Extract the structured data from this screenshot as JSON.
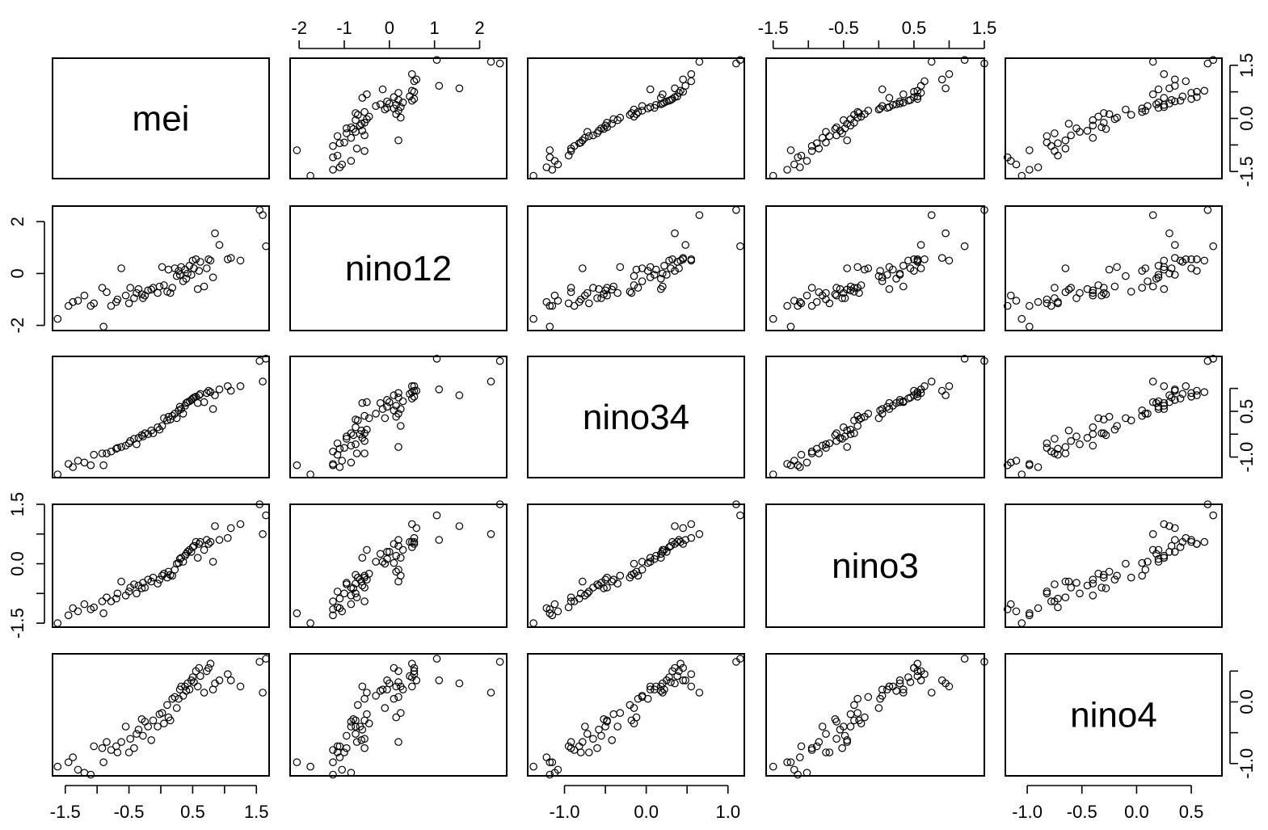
{
  "chart_data": {
    "type": "scatter",
    "title": "",
    "variables": [
      {
        "name": "mei",
        "range": [
          -1.7,
          1.7
        ]
      },
      {
        "name": "nino12",
        "range": [
          -2.2,
          2.6
        ]
      },
      {
        "name": "nino34",
        "range": [
          -1.45,
          1.2
        ]
      },
      {
        "name": "nino3",
        "range": [
          -1.6,
          1.5
        ]
      },
      {
        "name": "nino4",
        "range": [
          -1.2,
          0.78
        ]
      }
    ],
    "axes": {
      "top": [
        {
          "column": 1,
          "ticks": [
            -2,
            -1,
            0,
            1,
            2
          ],
          "labels": [
            "-2",
            "-1",
            "0",
            "1",
            "2"
          ]
        },
        {
          "column": 3,
          "ticks": [
            -1.5,
            -1,
            -0.5,
            0,
            0.5,
            1,
            1.5
          ],
          "labels": [
            "-1.5",
            "",
            "-0.5",
            "",
            "0.5",
            "",
            "1.5"
          ]
        }
      ],
      "bottom": [
        {
          "column": 0,
          "ticks": [
            -1.5,
            -1,
            -0.5,
            0,
            0.5,
            1,
            1.5
          ],
          "labels": [
            "-1.5",
            "",
            "-0.5",
            "",
            "0.5",
            "",
            "1.5"
          ]
        },
        {
          "column": 2,
          "ticks": [
            -1,
            -0.5,
            0,
            0.5,
            1
          ],
          "labels": [
            "-1.0",
            "",
            "0.0",
            "",
            "1.0"
          ]
        },
        {
          "column": 4,
          "ticks": [
            -1,
            -0.5,
            0,
            0.5
          ],
          "labels": [
            "-1.0",
            "-0.5",
            "0.0",
            "0.5"
          ]
        }
      ],
      "left": [
        {
          "row": 1,
          "ticks": [
            -2,
            0,
            2
          ],
          "labels": [
            "-2",
            "0",
            "2"
          ]
        },
        {
          "row": 3,
          "ticks": [
            -1.5,
            -0.75,
            0,
            0.75,
            1.5
          ],
          "labels": [
            "-1.5",
            "",
            "0.0",
            "",
            "1.5"
          ]
        }
      ],
      "right": [
        {
          "row": 0,
          "ticks": [
            -1.5,
            -0.75,
            0,
            0.75,
            1.5
          ],
          "labels": [
            "-1.5",
            "",
            "0.0",
            "",
            "1.5"
          ]
        },
        {
          "row": 2,
          "ticks": [
            -1,
            -0.5,
            0,
            0.5
          ],
          "labels": [
            "-1.0",
            "",
            "0.5",
            ""
          ],
          "label_positions": [
            -1,
            0.5
          ]
        },
        {
          "row": 4,
          "ticks": [
            -1,
            -0.5,
            0,
            0.5
          ],
          "labels": [
            "-1.0",
            "",
            "0.0",
            ""
          ]
        }
      ]
    },
    "observations": {
      "columns": [
        "mei",
        "nino12",
        "nino34",
        "nino3",
        "nino4"
      ],
      "rows": [
        [
          -1.62,
          -1.75,
          -1.38,
          -1.5,
          -1.05
        ],
        [
          -1.45,
          -1.25,
          -1.15,
          -1.3,
          -0.98
        ],
        [
          -1.38,
          -1.1,
          -1.22,
          -1.12,
          -0.9
        ],
        [
          -1.3,
          -1.05,
          -1.08,
          -1.2,
          -1.1
        ],
        [
          -1.2,
          -0.85,
          -1.12,
          -1.02,
          -1.15
        ],
        [
          -1.1,
          -1.25,
          -1.18,
          -1.15,
          -1.18
        ],
        [
          -1.05,
          -1.15,
          -0.95,
          -1.1,
          -0.72
        ],
        [
          -0.92,
          -0.55,
          -0.92,
          -0.95,
          -0.75
        ],
        [
          -0.9,
          -2.05,
          -1.18,
          -1.25,
          -0.98
        ],
        [
          -0.85,
          -0.72,
          -0.92,
          -0.85,
          -0.65
        ],
        [
          -0.78,
          -1.25,
          -0.88,
          -0.95,
          -0.78
        ],
        [
          -0.7,
          -1.1,
          -0.82,
          -0.88,
          -0.72
        ],
        [
          -0.68,
          -1.0,
          -0.8,
          -0.75,
          -0.82
        ],
        [
          -0.62,
          0.2,
          -0.78,
          -0.45,
          -0.65
        ],
        [
          -0.55,
          -0.85,
          -0.75,
          -0.8,
          -0.4
        ],
        [
          -0.5,
          -1.15,
          -0.7,
          -0.7,
          -0.82
        ],
        [
          -0.48,
          -0.55,
          -0.65,
          -0.6,
          -0.6
        ],
        [
          -0.42,
          -0.95,
          -0.6,
          -0.52,
          -0.75
        ],
        [
          -0.38,
          -0.75,
          -0.72,
          -0.75,
          -0.52
        ],
        [
          -0.35,
          -0.6,
          -0.58,
          -0.55,
          -0.45
        ],
        [
          -0.3,
          -0.8,
          -0.52,
          -0.62,
          -0.28
        ],
        [
          -0.28,
          -0.95,
          -0.55,
          -0.48,
          -0.55
        ],
        [
          -0.25,
          -0.85,
          -0.48,
          -0.6,
          -0.32
        ],
        [
          -0.2,
          -0.65,
          -0.5,
          -0.4,
          -0.4
        ],
        [
          -0.15,
          -0.62,
          -0.42,
          -0.45,
          -0.62
        ],
        [
          -0.12,
          -0.55,
          -0.48,
          -0.35,
          -0.3
        ],
        [
          -0.05,
          -0.75,
          -0.35,
          -0.5,
          -0.4
        ],
        [
          -0.02,
          -0.5,
          -0.4,
          -0.4,
          -0.2
        ],
        [
          0.02,
          0.25,
          -0.32,
          -0.3,
          -0.18
        ],
        [
          0.05,
          -0.45,
          -0.15,
          -0.25,
          -0.35
        ],
        [
          0.1,
          -0.7,
          -0.2,
          -0.35,
          -0.05
        ],
        [
          0.12,
          0.15,
          -0.12,
          -0.2,
          -0.25
        ],
        [
          0.15,
          -0.75,
          -0.18,
          -0.28,
          -0.3
        ],
        [
          0.18,
          -0.55,
          -0.1,
          -0.3,
          0.05
        ],
        [
          0.22,
          0.2,
          -0.05,
          -0.15,
          0.08
        ],
        [
          0.25,
          -0.1,
          -0.15,
          0.0,
          -0.1
        ],
        [
          0.28,
          0.1,
          0.02,
          0.02,
          0.05
        ],
        [
          0.3,
          -0.05,
          0.1,
          0.12,
          0.2
        ],
        [
          0.32,
          0.25,
          0.05,
          0.15,
          0.25
        ],
        [
          0.35,
          -0.3,
          -0.05,
          0.05,
          0.1
        ],
        [
          0.38,
          0.15,
          0.12,
          0.2,
          0.25
        ],
        [
          0.4,
          -0.2,
          0.18,
          0.25,
          0.18
        ],
        [
          0.42,
          0.0,
          0.2,
          0.3,
          0.3
        ],
        [
          0.45,
          0.3,
          0.22,
          0.35,
          0.2
        ],
        [
          0.48,
          -0.05,
          0.25,
          0.3,
          0.35
        ],
        [
          0.5,
          0.5,
          0.28,
          0.42,
          0.4
        ],
        [
          0.52,
          0.2,
          0.3,
          0.45,
          0.32
        ],
        [
          0.55,
          0.55,
          0.32,
          0.55,
          0.5
        ],
        [
          0.58,
          -0.6,
          0.18,
          0.15,
          0.25
        ],
        [
          0.6,
          0.1,
          0.35,
          0.5,
          0.55
        ],
        [
          0.62,
          0.45,
          0.38,
          0.55,
          0.42
        ],
        [
          0.68,
          -0.5,
          0.2,
          0.35,
          0.15
        ],
        [
          0.72,
          0.2,
          0.4,
          0.6,
          0.5
        ],
        [
          0.75,
          0.55,
          0.45,
          0.5,
          0.55
        ],
        [
          0.78,
          0.5,
          0.42,
          0.55,
          0.62
        ],
        [
          0.82,
          -0.15,
          0.05,
          0.05,
          0.2
        ],
        [
          0.85,
          1.55,
          0.35,
          0.95,
          0.3
        ],
        [
          0.92,
          1.1,
          0.48,
          0.6,
          0.35
        ],
        [
          1.05,
          0.55,
          0.55,
          0.65,
          0.45
        ],
        [
          1.1,
          0.6,
          0.45,
          0.9,
          0.35
        ],
        [
          1.25,
          0.5,
          0.55,
          1.0,
          0.25
        ],
        [
          1.55,
          2.45,
          1.1,
          1.5,
          0.65
        ],
        [
          1.6,
          2.25,
          0.65,
          0.75,
          0.15
        ],
        [
          1.65,
          1.05,
          1.15,
          1.22,
          0.7
        ]
      ]
    }
  }
}
